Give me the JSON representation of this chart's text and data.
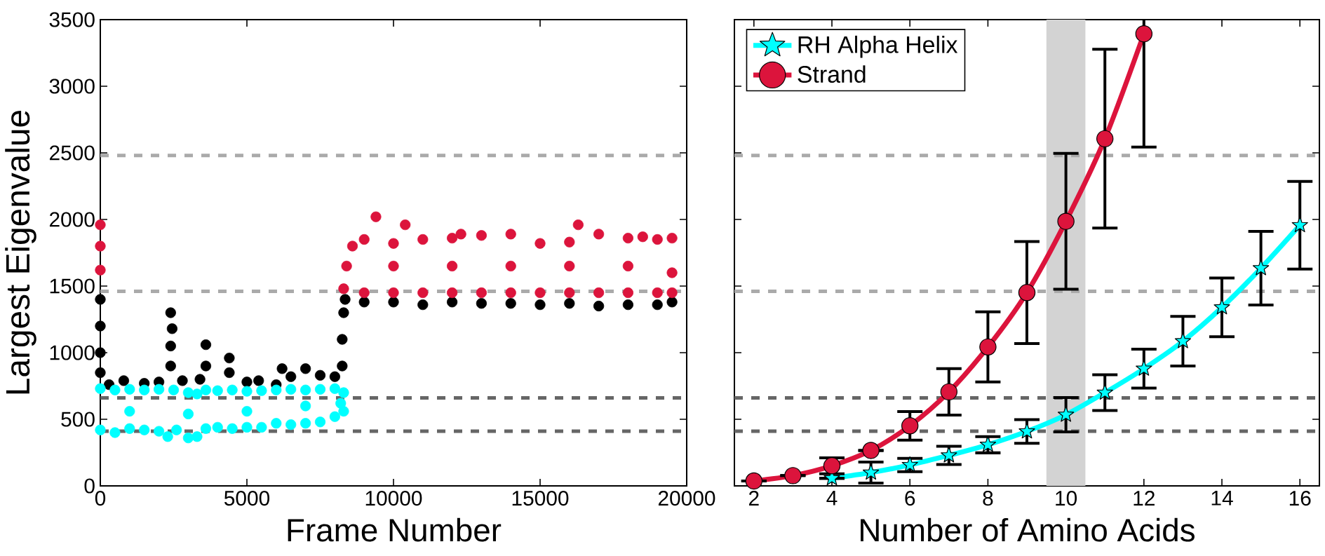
{
  "chart_data": [
    {
      "type": "scatter",
      "xlabel": "Frame Number",
      "ylabel": "Largest Eigenvalue",
      "xlim": [
        0,
        20000
      ],
      "ylim": [
        0,
        3500
      ],
      "xticks": [
        0,
        5000,
        10000,
        15000,
        20000
      ],
      "yticks": [
        0,
        500,
        1000,
        1500,
        2000,
        2500,
        3000,
        3500
      ],
      "marker": "circle",
      "ref_lines": [
        {
          "axis": "y",
          "value": 2480,
          "color": "#aaaaaa",
          "line_style": "dashed"
        },
        {
          "axis": "y",
          "value": 1460,
          "color": "#aaaaaa",
          "line_style": "dashed"
        },
        {
          "axis": "y",
          "value": 660,
          "color": "#666666",
          "line_style": "dashed"
        },
        {
          "axis": "y",
          "value": 410,
          "color": "#666666",
          "line_style": "dashed"
        }
      ],
      "series": [
        {
          "color": "#000000",
          "x": [
            0,
            0,
            0,
            0,
            300,
            800,
            1500,
            2000,
            2400,
            2450,
            2400,
            2400,
            2800,
            3600,
            3600,
            3400,
            4400,
            4400,
            5000,
            5400,
            6000,
            6200,
            6500,
            7000,
            7500,
            8000,
            8250,
            8250,
            8300,
            8350,
            9000,
            10000,
            11000,
            12000,
            13000,
            14000,
            15000,
            16000,
            17000,
            18000,
            19000,
            19500
          ],
          "values": [
            1400,
            1200,
            1000,
            850,
            760,
            790,
            770,
            780,
            1300,
            1180,
            1050,
            900,
            790,
            1060,
            900,
            800,
            960,
            850,
            780,
            790,
            760,
            880,
            820,
            880,
            830,
            820,
            900,
            1100,
            1300,
            1400,
            1380,
            1380,
            1360,
            1380,
            1370,
            1370,
            1360,
            1370,
            1350,
            1360,
            1360,
            1380
          ]
        },
        {
          "color": "#00ffff",
          "x": [
            0,
            500,
            1000,
            1500,
            2000,
            2500,
            3000,
            3300,
            3600,
            4000,
            4500,
            5000,
            5500,
            6000,
            6500,
            7000,
            7500,
            8000,
            8300,
            0,
            500,
            1000,
            1500,
            2000,
            2300,
            2600,
            3000,
            3300,
            3600,
            4000,
            4500,
            5000,
            5500,
            6000,
            6500,
            7000,
            7500,
            8000,
            8300,
            1000,
            3000,
            5000,
            7000,
            8200
          ],
          "values": [
            730,
            720,
            725,
            720,
            725,
            720,
            700,
            690,
            720,
            715,
            720,
            710,
            715,
            720,
            725,
            720,
            725,
            730,
            700,
            420,
            400,
            430,
            420,
            410,
            370,
            420,
            360,
            370,
            430,
            440,
            430,
            440,
            440,
            470,
            460,
            470,
            480,
            520,
            560,
            560,
            540,
            560,
            600,
            620
          ]
        },
        {
          "color": "#dc143c",
          "x": [
            0,
            0,
            0,
            8400,
            8600,
            9000,
            9400,
            10000,
            10400,
            11000,
            12000,
            12300,
            13000,
            14000,
            15000,
            16000,
            16300,
            17000,
            18000,
            18500,
            19000,
            19500,
            8300,
            9000,
            10000,
            11000,
            12000,
            13000,
            14000,
            15000,
            16000,
            17000,
            18000,
            19000,
            19500,
            10000,
            12000,
            14000,
            16000,
            18000,
            19500
          ],
          "values": [
            1960,
            1800,
            1620,
            1650,
            1800,
            1850,
            2020,
            1820,
            1960,
            1850,
            1860,
            1890,
            1880,
            1890,
            1820,
            1830,
            1960,
            1890,
            1860,
            1870,
            1850,
            1860,
            1480,
            1450,
            1450,
            1450,
            1450,
            1450,
            1450,
            1450,
            1450,
            1450,
            1450,
            1450,
            1450,
            1650,
            1650,
            1650,
            1650,
            1650,
            1600
          ]
        }
      ]
    },
    {
      "type": "line",
      "xlabel": "Number of Amino Acids",
      "xlim": [
        1.5,
        16.5
      ],
      "ylim": [
        0,
        3500
      ],
      "xticks": [
        2,
        4,
        6,
        8,
        10,
        12,
        14,
        16
      ],
      "yticks": [
        0,
        500,
        1000,
        1500,
        2000,
        2500,
        3000,
        3500
      ],
      "tick_labels": "x",
      "legend": "top left",
      "bands": [
        {
          "axis": "x",
          "from": 9.5,
          "to": 10.5,
          "color": "#d3d3d3"
        }
      ],
      "ref_lines": [
        {
          "axis": "y",
          "value": 2480,
          "color": "#aaaaaa",
          "line_style": "dashed"
        },
        {
          "axis": "y",
          "value": 1460,
          "color": "#aaaaaa",
          "line_style": "dashed"
        },
        {
          "axis": "y",
          "value": 660,
          "color": "#666666",
          "line_style": "dashed"
        },
        {
          "axis": "y",
          "value": 410,
          "color": "#666666",
          "line_style": "dashed"
        }
      ],
      "series": [
        {
          "name": "RH Alpha Helix",
          "color": "#00ffff",
          "marker": "star",
          "x": [
            4,
            5,
            6,
            7,
            8,
            9,
            10,
            11,
            12,
            13,
            14,
            15,
            16
          ],
          "values": [
            57,
            100,
            157,
            229,
            309,
            409,
            534,
            700,
            880,
            1086,
            1340,
            1634,
            1957
          ],
          "errors": [
            null,
            79,
            50,
            69,
            61,
            89,
            129,
            134,
            146,
            186,
            220,
            276,
            329
          ]
        },
        {
          "name": "Strand",
          "color": "#dc143c",
          "marker": "circle",
          "x": [
            2,
            3,
            4,
            5,
            6,
            7,
            8,
            9,
            10,
            11,
            12
          ],
          "values": [
            37,
            77,
            151,
            266,
            451,
            706,
            1043,
            1451,
            1986,
            2606,
            3394
          ],
          "errors": [
            null,
            null,
            60,
            null,
            107,
            174,
            263,
            383,
            510,
            671,
            851
          ]
        }
      ]
    }
  ]
}
